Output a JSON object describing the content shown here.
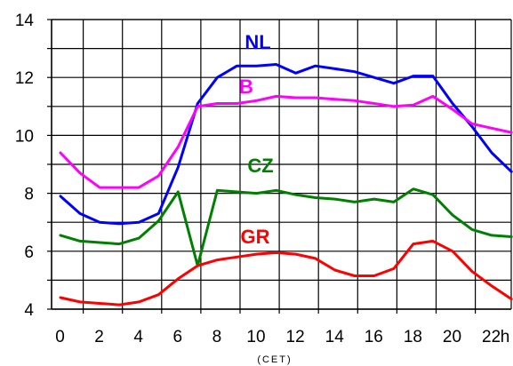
{
  "chart_data": {
    "type": "line",
    "x_tick_labels": [
      "0",
      "2",
      "4",
      "6",
      "8",
      "10",
      "12",
      "14",
      "16",
      "18",
      "20",
      "22",
      "h"
    ],
    "x_unit_label": "(CET)",
    "y_tick_labels": [
      "4",
      "6",
      "8",
      "10",
      "12",
      "14"
    ],
    "ylim": [
      4,
      14
    ],
    "xlim": [
      0,
      24
    ],
    "grid": true,
    "x": [
      0,
      1,
      2,
      3,
      4,
      5,
      6,
      7,
      8,
      9,
      10,
      11,
      12,
      13,
      14,
      15,
      16,
      17,
      18,
      19,
      20,
      21,
      22,
      23
    ],
    "series": [
      {
        "name": "NL",
        "color": "#0000ff",
        "values": [
          7.9,
          7.3,
          7.0,
          6.95,
          7.0,
          7.3,
          8.9,
          11.1,
          12.0,
          12.4,
          12.4,
          12.45,
          12.15,
          12.4,
          12.3,
          12.2,
          12.0,
          11.8,
          12.05,
          12.05,
          11.1,
          10.3,
          9.4,
          8.75
        ]
      },
      {
        "name": "B",
        "color": "#ff00ff",
        "values": [
          9.4,
          8.7,
          8.2,
          8.2,
          8.2,
          8.6,
          9.6,
          11.0,
          11.1,
          11.1,
          11.2,
          11.35,
          11.3,
          11.3,
          11.25,
          11.2,
          11.1,
          11.0,
          11.05,
          11.35,
          10.9,
          10.4,
          10.25,
          10.1
        ]
      },
      {
        "name": "CZ",
        "color": "#008000",
        "values": [
          6.55,
          6.35,
          6.3,
          6.25,
          6.45,
          7.05,
          8.05,
          5.5,
          8.1,
          8.05,
          8.0,
          8.1,
          7.95,
          7.85,
          7.8,
          7.7,
          7.8,
          7.7,
          8.15,
          7.95,
          7.25,
          6.75,
          6.55,
          6.5
        ]
      },
      {
        "name": "GR",
        "color": "#ff0000",
        "values": [
          4.4,
          4.25,
          4.2,
          4.15,
          4.25,
          4.5,
          5.05,
          5.5,
          5.7,
          5.8,
          5.9,
          5.95,
          5.9,
          5.75,
          5.35,
          5.15,
          5.15,
          5.4,
          6.25,
          6.35,
          6.0,
          5.3,
          4.8,
          4.35
        ]
      }
    ]
  }
}
